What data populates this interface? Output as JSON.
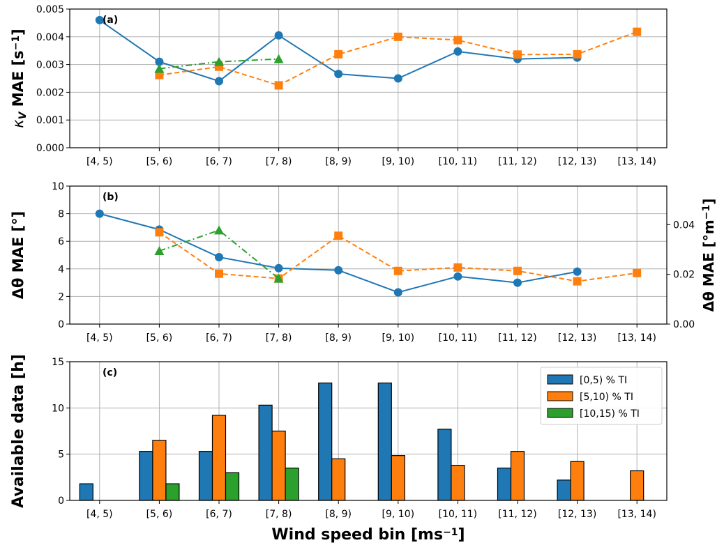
{
  "chart_data": [
    {
      "type": "line",
      "panel_label": "(a)",
      "ylabel": "κ_V MAE [s⁻¹]",
      "ylabel_parts": {
        "symbol": "κ",
        "sub": "V",
        "text": " MAE [s",
        "sup": "−1",
        "end": "]"
      },
      "categories": [
        "[4, 5)",
        "[5, 6)",
        "[6, 7)",
        "[7, 8)",
        "[8, 9)",
        "[9, 10)",
        "[10, 11)",
        "[11, 12)",
        "[12, 13)",
        "[13, 14)"
      ],
      "ylim": [
        0,
        0.005
      ],
      "yticks": [
        "0.000",
        "0.001",
        "0.002",
        "0.003",
        "0.004",
        "0.005"
      ],
      "grid": true,
      "series": [
        {
          "values": [
            0.0046,
            0.0031,
            0.0024,
            0.00405,
            0.00266,
            0.0025,
            0.00347,
            0.0032,
            0.00325,
            null
          ],
          "color": "#1f77b4",
          "marker": "circle",
          "dash": "solid"
        },
        {
          "values": [
            null,
            0.00262,
            0.00292,
            0.00225,
            0.00337,
            0.004,
            0.00388,
            0.00336,
            0.00337,
            0.00418
          ],
          "color": "#ff7f0e",
          "marker": "square",
          "dash": "dashed"
        },
        {
          "values": [
            null,
            0.00285,
            0.0031,
            0.0032,
            null,
            null,
            null,
            null,
            null,
            null
          ],
          "color": "#2ca02c",
          "marker": "triangle",
          "dash": "dashdot"
        }
      ]
    },
    {
      "type": "line",
      "panel_label": "(b)",
      "ylabel": "Δθ MAE [°]",
      "ylabel_right": "Δθ MAE [°m⁻¹]",
      "ylabel_right_parts": {
        "text": "Δθ MAE [°m",
        "sup": "−1",
        "end": "]"
      },
      "categories": [
        "[4, 5)",
        "[5, 6)",
        "[6, 7)",
        "[7, 8)",
        "[8, 9)",
        "[9, 10)",
        "[10, 11)",
        "[11, 12)",
        "[12, 13)",
        "[13, 14)"
      ],
      "ylim": [
        0,
        10
      ],
      "yticks": [
        "0",
        "2",
        "4",
        "6",
        "8",
        "10"
      ],
      "ylim_right": [
        0,
        0.0555
      ],
      "yticks_right": [
        {
          "value": 0.0,
          "label": "0.00"
        },
        {
          "value": 0.02,
          "label": "0.02"
        },
        {
          "value": 0.04,
          "label": "0.04"
        }
      ],
      "grid": true,
      "series": [
        {
          "values": [
            8.0,
            6.85,
            4.85,
            4.05,
            3.9,
            2.3,
            3.45,
            3.0,
            3.8,
            null
          ],
          "color": "#1f77b4",
          "marker": "circle",
          "dash": "solid"
        },
        {
          "values": [
            null,
            6.65,
            3.65,
            3.3,
            6.4,
            3.85,
            4.1,
            3.85,
            3.1,
            3.7
          ],
          "color": "#ff7f0e",
          "marker": "square",
          "dash": "dashed"
        },
        {
          "values": [
            null,
            5.3,
            6.8,
            3.3,
            null,
            null,
            null,
            null,
            null,
            null
          ],
          "color": "#2ca02c",
          "marker": "triangle",
          "dash": "dashdot"
        }
      ]
    },
    {
      "type": "bar",
      "panel_label": "(c)",
      "ylabel": "Available data [h]",
      "xlabel": "Wind speed bin [ms⁻¹]",
      "xlabel_parts": {
        "text": "Wind speed bin [ms",
        "sup": "−1",
        "end": "]"
      },
      "categories": [
        "[4, 5)",
        "[5, 6)",
        "[6, 7)",
        "[7, 8)",
        "[8, 9)",
        "[9, 10)",
        "[10, 11)",
        "[11, 12)",
        "[12, 13)",
        "[13, 14)"
      ],
      "ylim": [
        0,
        15
      ],
      "yticks": [
        "0",
        "5",
        "10",
        "15"
      ],
      "grid": true,
      "legend_position": "top-right",
      "series": [
        {
          "name": "[0,5) % TI",
          "values": [
            1.8,
            5.3,
            5.3,
            10.3,
            12.7,
            12.7,
            7.7,
            3.5,
            2.2,
            0
          ],
          "color": "#1f77b4"
        },
        {
          "name": "[5,10) % TI",
          "values": [
            0,
            6.5,
            9.2,
            7.5,
            4.5,
            4.85,
            3.8,
            5.3,
            4.2,
            3.2
          ],
          "color": "#ff7f0e"
        },
        {
          "name": "[10,15) % TI",
          "values": [
            0,
            1.8,
            3.0,
            3.5,
            0,
            0,
            0,
            0,
            0,
            0
          ],
          "color": "#2ca02c"
        }
      ]
    }
  ]
}
